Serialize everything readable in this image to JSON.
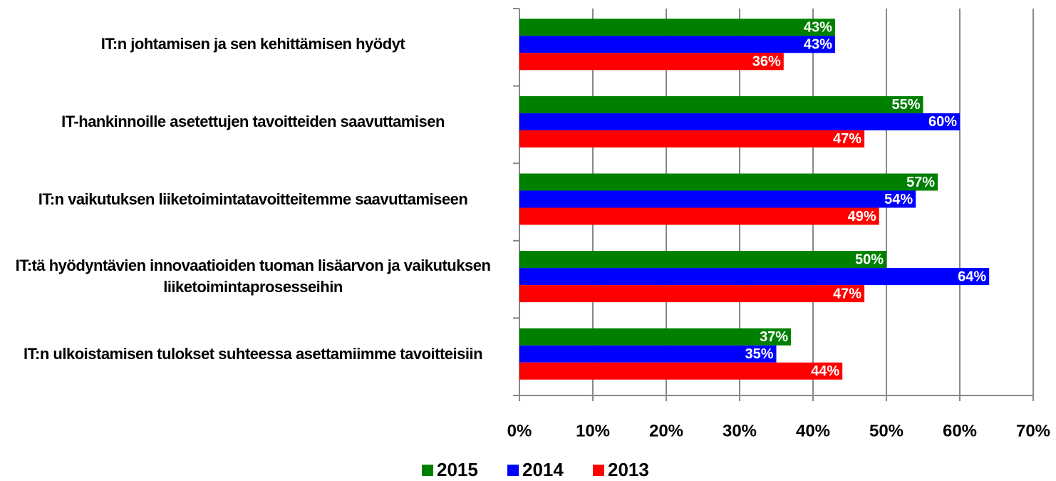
{
  "chart_data": {
    "type": "bar",
    "orientation": "horizontal",
    "categories": [
      "IT:n johtamisen ja sen kehittämisen hyödyt",
      "IT-hankinnoille asetettujen tavoitteiden saavuttamisen",
      "IT:n vaikutuksen liiketoimintatavoitteitemme saavuttamiseen",
      "IT:tä hyödyntävien innovaatioiden tuoman lisäarvon ja vaikutuksen liiketoimintaprosesseihin",
      "IT:n ulkoistamisen tulokset suhteessa asettamiimme tavoitteisiin"
    ],
    "series": [
      {
        "name": "2015",
        "color": "#008000",
        "values": [
          43,
          55,
          57,
          50,
          37
        ],
        "value_labels": [
          "43%",
          "55%",
          "57%",
          "50%",
          "37%"
        ]
      },
      {
        "name": "2014",
        "color": "#0000ff",
        "values": [
          43,
          60,
          54,
          64,
          35
        ],
        "value_labels": [
          "43%",
          "60%",
          "54%",
          "64%",
          "35%"
        ]
      },
      {
        "name": "2013",
        "color": "#ff0000",
        "values": [
          36,
          47,
          49,
          47,
          44
        ],
        "value_labels": [
          "36%",
          "47%",
          "49%",
          "47%",
          "44%"
        ]
      }
    ],
    "xlim": [
      0,
      70
    ],
    "xticks": [
      {
        "value": 0,
        "label": "0%"
      },
      {
        "value": 10,
        "label": "10%"
      },
      {
        "value": 20,
        "label": "20%"
      },
      {
        "value": 30,
        "label": "30%"
      },
      {
        "value": 40,
        "label": "40%"
      },
      {
        "value": 50,
        "label": "50%"
      },
      {
        "value": 60,
        "label": "60%"
      },
      {
        "value": 70,
        "label": "70%"
      }
    ],
    "grid": true,
    "legend": "bottom"
  }
}
